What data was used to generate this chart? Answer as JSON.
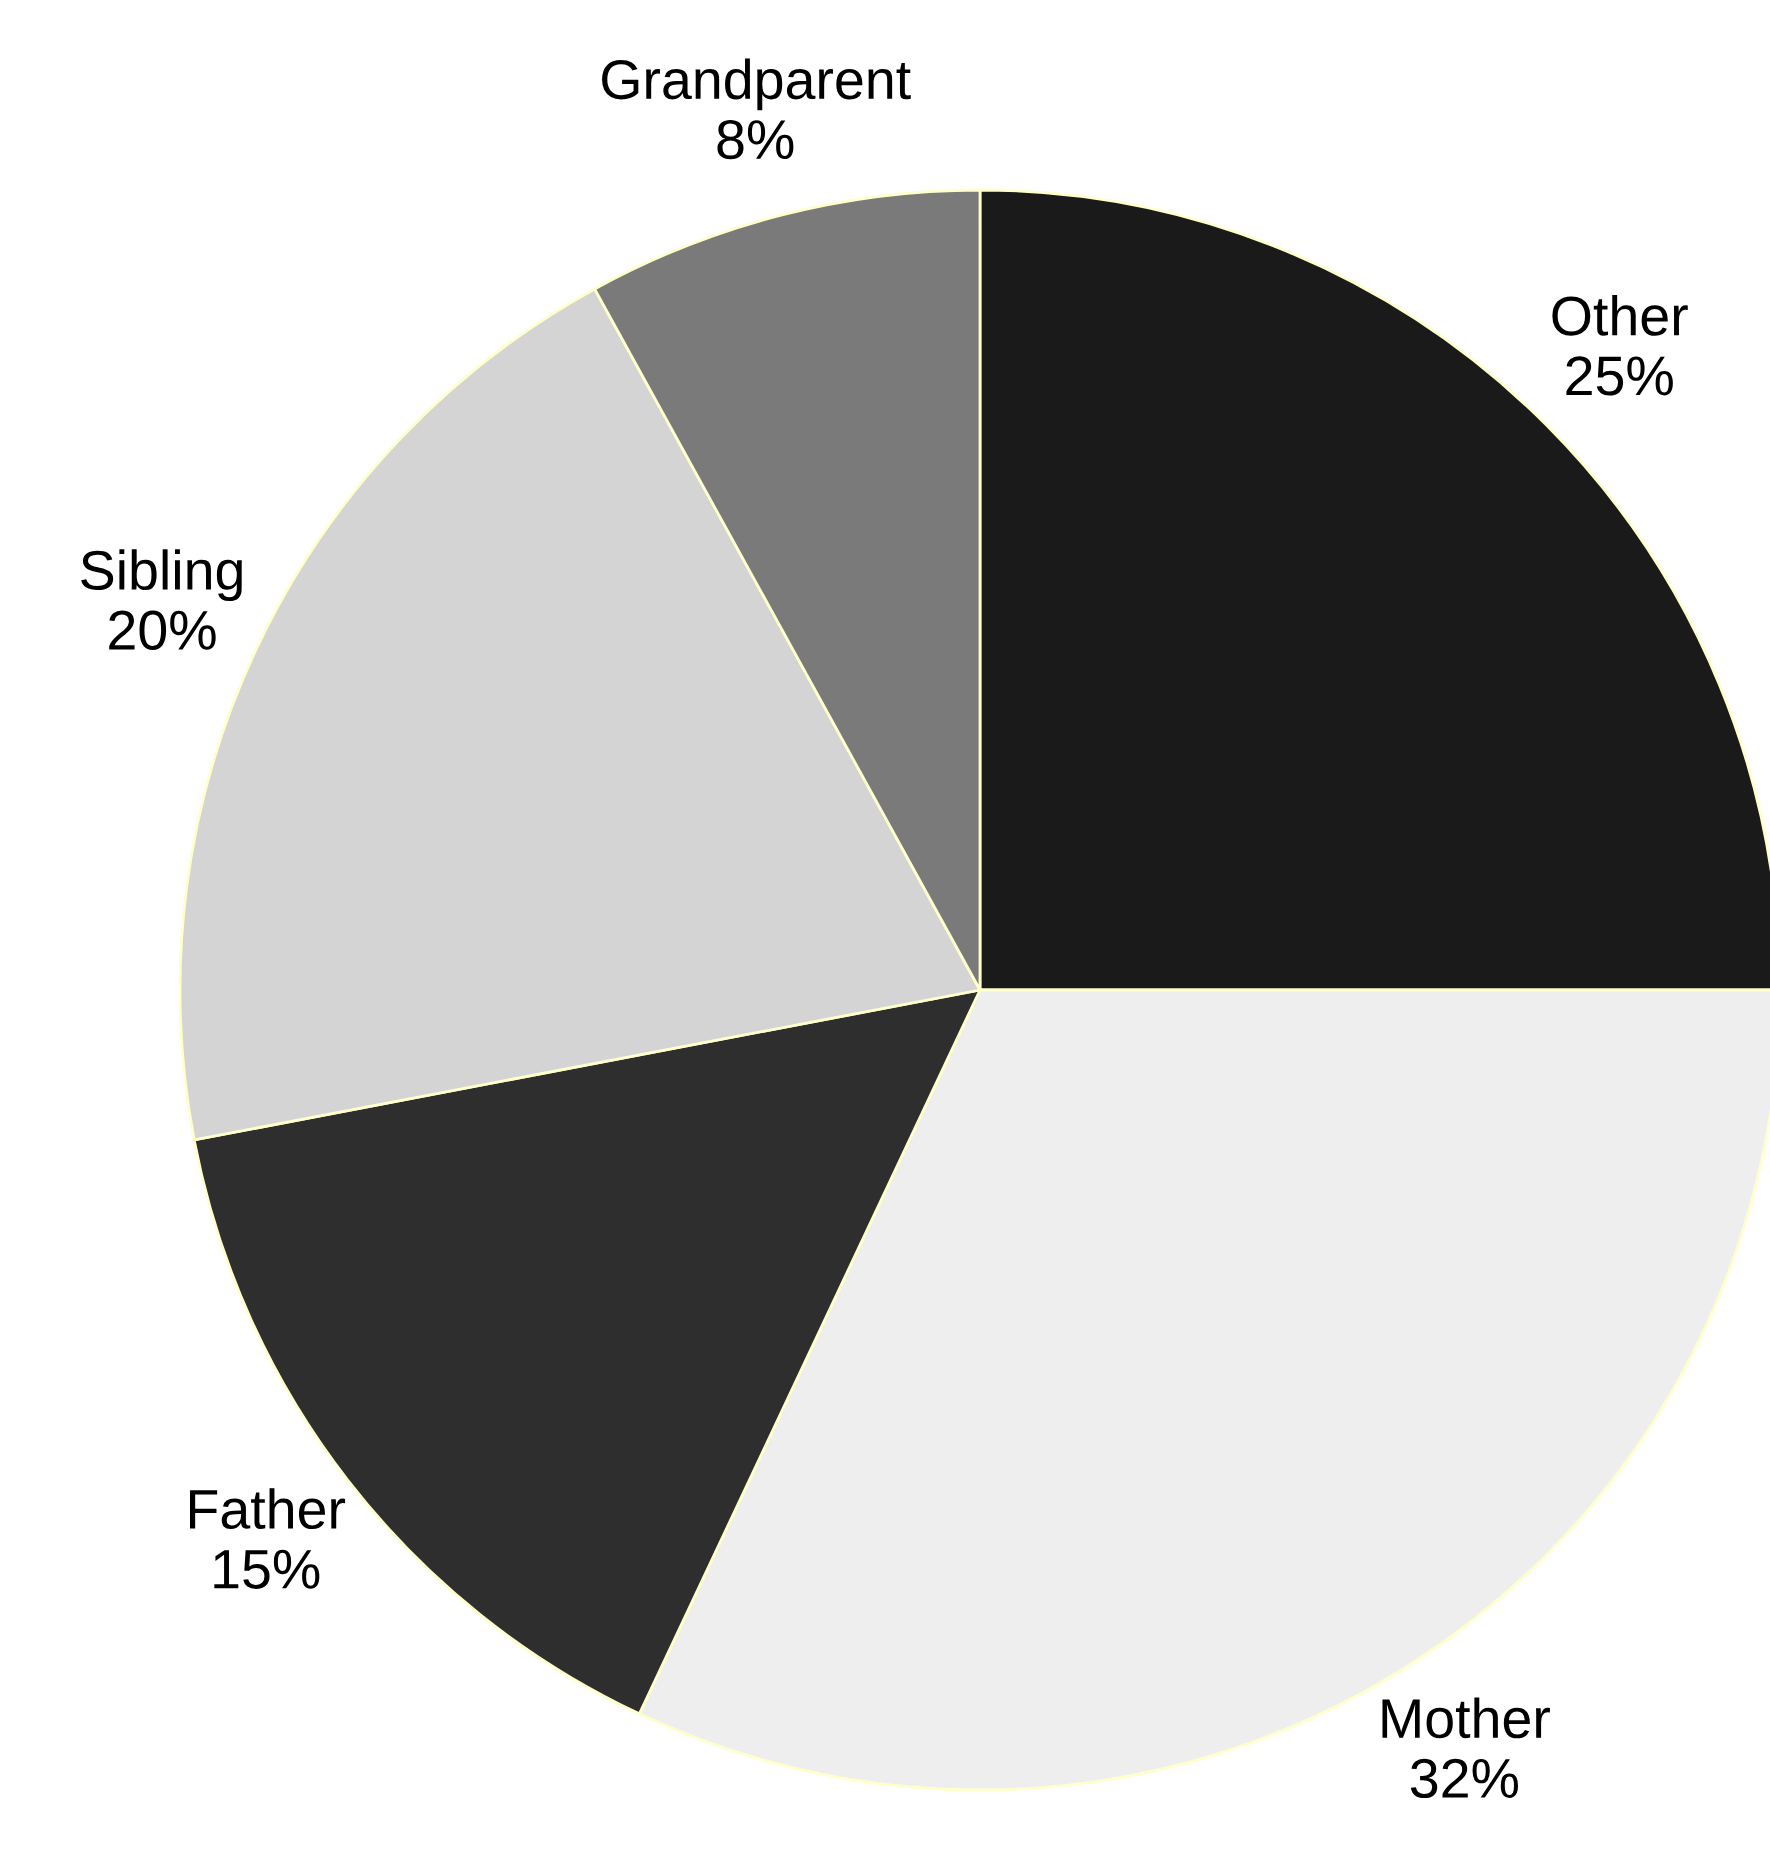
{
  "chart_data": {
    "type": "pie",
    "categories": [
      "Other",
      "Mother",
      "Father",
      "Sibling",
      "Grandparent"
    ],
    "values": [
      25,
      32,
      15,
      20,
      8
    ],
    "value_labels": [
      "25%",
      "32%",
      "15%",
      "20%",
      "8%"
    ],
    "colors": [
      "#1a1a1a",
      "#eeeeee",
      "#2e2e2e",
      "#d4d4d4",
      "#7a7a7a"
    ]
  }
}
